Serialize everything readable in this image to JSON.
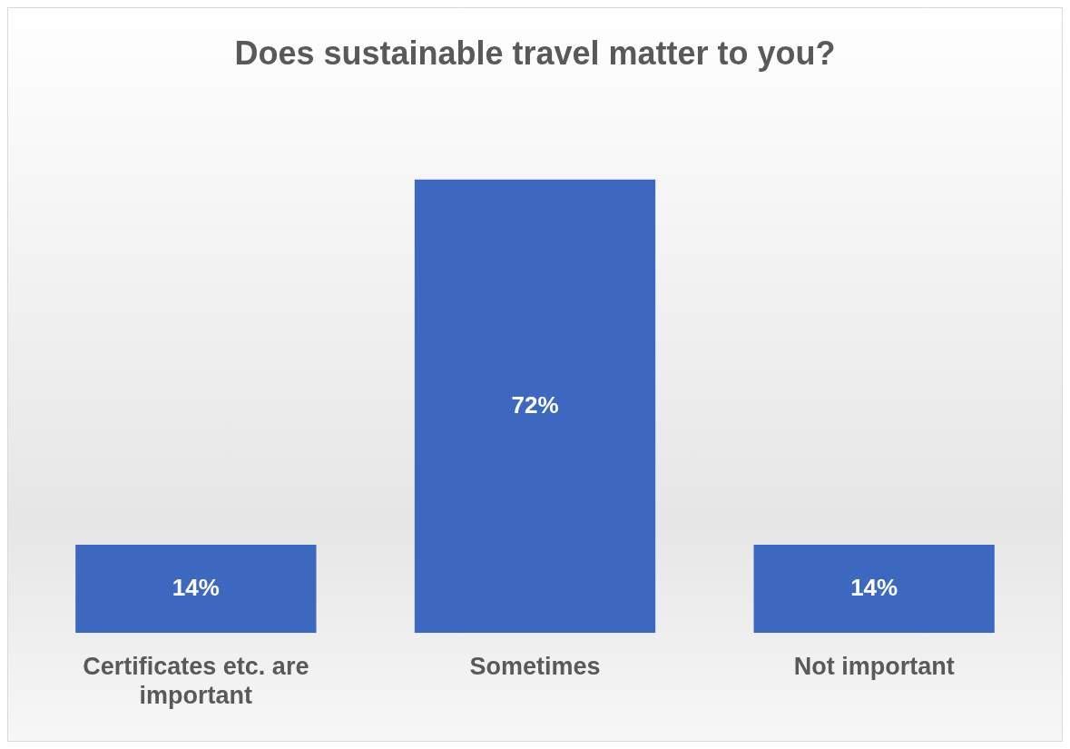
{
  "chart_data": {
    "type": "bar",
    "title": "Does sustainable travel matter to you?",
    "categories": [
      "Certificates etc. are important",
      "Sometimes",
      "Not important"
    ],
    "values": [
      14,
      72,
      14
    ],
    "color": "#3d68c0",
    "value_labels": [
      "14%",
      "72%",
      "14%"
    ],
    "grid": false,
    "legend": false,
    "tick_labels": "x"
  }
}
